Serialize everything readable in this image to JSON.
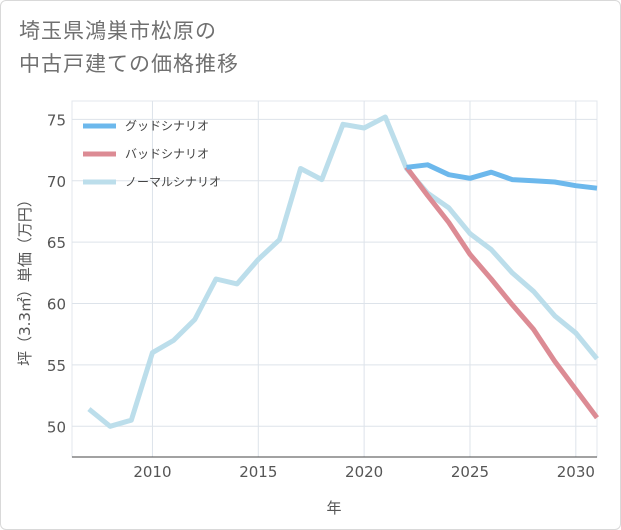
{
  "title": {
    "line1": "埼玉県鴻巣市松原の",
    "line2": "中古戸建ての価格推移"
  },
  "colors": {
    "good": "#6cb8ec",
    "bad": "#dc8b94",
    "normal": "#bcdeeb",
    "grid": "#dde3ea",
    "axis": "#444444"
  },
  "chart_data": {
    "type": "line",
    "xlabel": "年",
    "ylabel": "坪（3.3㎡）単価（万円）",
    "xlim": [
      2006.2,
      2031
    ],
    "ylim": [
      47.5,
      76.5
    ],
    "xticks": [
      2010,
      2015,
      2020,
      2025,
      2030
    ],
    "yticks": [
      50,
      55,
      60,
      65,
      70,
      75
    ],
    "legend_position": "top-left",
    "series": [
      {
        "key": "good",
        "name": "グッドシナリオ",
        "x": [
          2022,
          2023,
          2024,
          2025,
          2026,
          2027,
          2028,
          2029,
          2030,
          2031
        ],
        "y": [
          71.1,
          71.3,
          70.5,
          70.2,
          70.7,
          70.1,
          70.0,
          69.9,
          69.6,
          69.4
        ]
      },
      {
        "key": "bad",
        "name": "バッドシナリオ",
        "x": [
          2022,
          2023,
          2024,
          2025,
          2026,
          2027,
          2028,
          2029,
          2030,
          2031
        ],
        "y": [
          71.1,
          68.8,
          66.6,
          64.0,
          62.0,
          59.9,
          57.9,
          55.3,
          53.0,
          50.7
        ]
      },
      {
        "key": "normal",
        "name": "ノーマルシナリオ",
        "x": [
          2007,
          2008,
          2009,
          2010,
          2011,
          2012,
          2013,
          2014,
          2015,
          2016,
          2017,
          2018,
          2019,
          2020,
          2021,
          2022,
          2023,
          2024,
          2025,
          2026,
          2027,
          2028,
          2029,
          2030,
          2031
        ],
        "y": [
          51.4,
          50.0,
          50.5,
          56.0,
          57.0,
          58.7,
          62.0,
          61.6,
          63.6,
          65.2,
          71.0,
          70.1,
          74.6,
          74.3,
          75.2,
          71.0,
          69.0,
          67.8,
          65.7,
          64.4,
          62.5,
          61.0,
          59.0,
          57.6,
          55.5
        ]
      }
    ]
  }
}
